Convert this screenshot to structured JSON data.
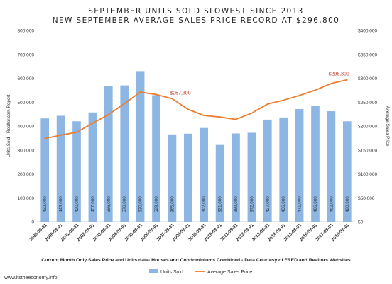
{
  "chart_data": {
    "type": "bar",
    "title": "SEPTEMBER UNITS SOLD SLOWEST SINCE 2013",
    "subtitle": "NEW SEPTEMBER AVERAGE SALES PRICE RECORD AT $296,800",
    "categories": [
      "1999-09-01",
      "2000-09-01",
      "2001-09-01",
      "2002-09-01",
      "2003-09-01",
      "2004-09-01",
      "2005-09-01",
      "2006-09-01",
      "2007-09-01",
      "2008-09-01",
      "2009-09-01",
      "2010-09-01",
      "2011-09-01",
      "2012-09-01",
      "2013-09-01",
      "2014-09-01",
      "2015-09-01",
      "2016-09-01",
      "2017-09-01",
      "2018-09-01"
    ],
    "bar_labels": [
      "432,000",
      "443,000",
      "420,000",
      "457,000",
      "566,000",
      "570,000",
      "630,000",
      "529,000",
      "365,000",
      "",
      "392,000",
      "321,000",
      "369,000",
      "372,000",
      "427,000",
      "436,000",
      "471,000",
      "486,000",
      "462,000",
      "420,000"
    ],
    "series": [
      {
        "name": "Units Sold",
        "type": "bar",
        "axis": "left",
        "color": "#8db6e2",
        "values": [
          432000,
          443000,
          420000,
          457000,
          566000,
          570000,
          630000,
          529000,
          365000,
          368000,
          392000,
          321000,
          369000,
          372000,
          427000,
          436000,
          471000,
          486000,
          462000,
          420000
        ]
      },
      {
        "name": "Average Sales Price",
        "type": "line",
        "axis": "right",
        "color": "#ed7d31",
        "values": [
          174000,
          181000,
          187000,
          206000,
          224000,
          247000,
          271000,
          266000,
          257300,
          235000,
          222000,
          219000,
          214000,
          227000,
          246000,
          254000,
          264000,
          275000,
          289000,
          296800
        ]
      }
    ],
    "ylabel": "Units Sold - Realtor.com Report",
    "ylabel_right": "Average Sales Price",
    "ylim": [
      0,
      800000
    ],
    "ylim_right": [
      0,
      400000
    ],
    "yticks": [
      "0",
      "100,000",
      "200,000",
      "300,000",
      "400,000",
      "500,000",
      "600,000",
      "700,000",
      "800,000"
    ],
    "yticks_right": [
      "$0",
      "$50,000",
      "$100,000",
      "$150,000",
      "$200,000",
      "$250,000",
      "$300,000",
      "$350,000",
      "$400,000"
    ],
    "annotations": [
      {
        "text": "$257,300",
        "category_index": 8
      },
      {
        "text": "$296,800",
        "category_index": 19
      }
    ],
    "annotation_color": "#c0392b",
    "grid": false,
    "legend_position": "bottom",
    "footnote": "Current Month Only Sales Price and Units data- Houses and Condominiums Combined - Data Courtesy of FRED and Realtors Websites",
    "source": "www.itstheeconomy.info"
  }
}
